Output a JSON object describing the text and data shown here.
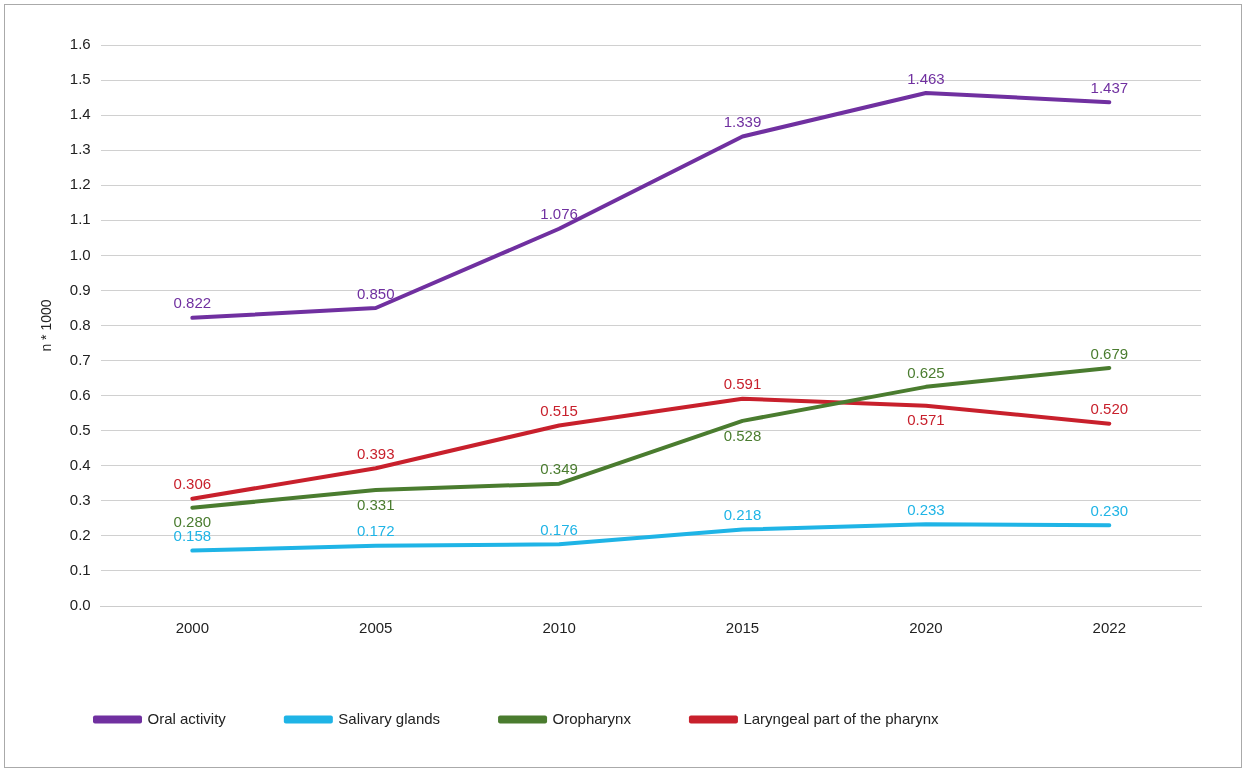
{
  "chart_data": {
    "type": "line",
    "ylabel": "n * 1000",
    "categories": [
      "2000",
      "2005",
      "2010",
      "2015",
      "2020",
      "2022"
    ],
    "series": [
      {
        "name": "Oral activity",
        "color": "#7030a0",
        "values": [
          0.822,
          0.85,
          1.076,
          1.339,
          1.463,
          1.437
        ],
        "value_labels": [
          "0.822",
          "0.850",
          "1.076",
          "1.339",
          "1.463",
          "1.437"
        ]
      },
      {
        "name": "Salivary glands",
        "color": "#1fb4e6",
        "values": [
          0.158,
          0.172,
          0.176,
          0.218,
          0.233,
          0.23
        ],
        "value_labels": [
          "0.158",
          "0.172",
          "0.176",
          "0.218",
          "0.233",
          "0.230"
        ]
      },
      {
        "name": "Oropharynx",
        "color": "#4a7c2f",
        "values": [
          0.28,
          0.331,
          0.349,
          0.528,
          0.625,
          0.679
        ],
        "value_labels": [
          "0.280",
          "0.331",
          "0.349",
          "0.528",
          "0.625",
          "0.679"
        ]
      },
      {
        "name": "Laryngeal part of the pharynx",
        "color": "#c8202c",
        "values": [
          0.306,
          0.393,
          0.515,
          0.591,
          0.571,
          0.52
        ],
        "value_labels": [
          "0.306",
          "0.393",
          "0.515",
          "0.591",
          "0.571",
          "0.520"
        ]
      }
    ],
    "ylim": [
      0,
      1.6
    ],
    "yticks": [
      {
        "value": 0,
        "label": "0.0"
      },
      0.1,
      0.2,
      0.3,
      0.4,
      0.5,
      0.6,
      0.7,
      0.8,
      0.9,
      {
        "value": 1,
        "label": "1.0"
      },
      1.1,
      1.2,
      1.3,
      1.4,
      1.5,
      1.6
    ],
    "grid": "y",
    "legend": "bottom",
    "marker": "none",
    "line_style": "solid"
  }
}
